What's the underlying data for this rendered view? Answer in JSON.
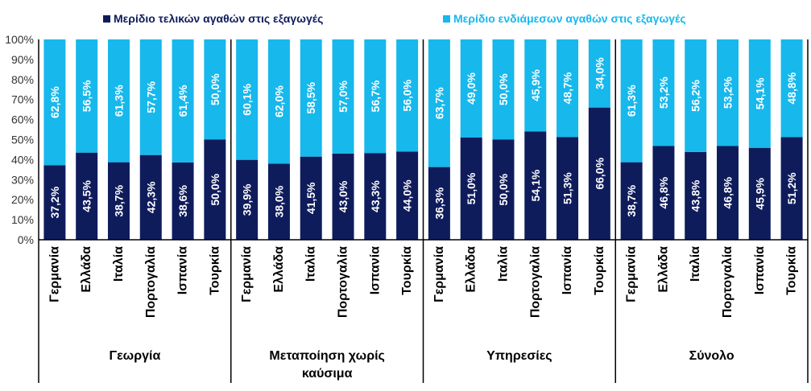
{
  "chart_data": {
    "type": "bar",
    "stacked": true,
    "y_ticks": [
      "0%",
      "10%",
      "20%",
      "30%",
      "40%",
      "50%",
      "60%",
      "70%",
      "80%",
      "90%",
      "100%"
    ],
    "ylim": [
      0,
      100
    ],
    "legend": [
      {
        "name": "Μερίδιο τελικών αγαθών στις εξαγωγές",
        "color": "#0f1c5c"
      },
      {
        "name": "Μερίδιο ενδιάμεσων αγαθών στις εξαγωγές",
        "color": "#17b8ec"
      }
    ],
    "countries": [
      "Γερμανία",
      "Ελλάδα",
      "Ιταλία",
      "Πορτογαλία",
      "Ισπανία",
      "Τουρκία"
    ],
    "groups": [
      {
        "label": "Γεωργία",
        "final": [
          37.2,
          43.5,
          38.7,
          42.3,
          38.6,
          50.0
        ],
        "final_labels": [
          "37,2%",
          "43,5%",
          "38,7%",
          "42,3%",
          "38,6%",
          "50,0%"
        ],
        "intermediate": [
          62.8,
          56.5,
          61.3,
          57.7,
          61.4,
          50.0
        ],
        "intermediate_labels": [
          "62,8%",
          "56,5%",
          "61,3%",
          "57,7%",
          "61,4%",
          "50,0%"
        ]
      },
      {
        "label": "Μεταποίηση χωρίς καύσιμα",
        "final": [
          39.9,
          38.0,
          41.5,
          43.0,
          43.3,
          44.0
        ],
        "final_labels": [
          "39,9%",
          "38,0%",
          "41,5%",
          "43,0%",
          "43,3%",
          "44,0%"
        ],
        "intermediate": [
          60.1,
          62.0,
          58.5,
          57.0,
          56.7,
          56.0
        ],
        "intermediate_labels": [
          "60,1%",
          "62,0%",
          "58,5%",
          "57,0%",
          "56,7%",
          "56,0%"
        ]
      },
      {
        "label": "Υπηρεσίες",
        "final": [
          36.3,
          51.0,
          50.0,
          54.1,
          51.3,
          66.0
        ],
        "final_labels": [
          "36,3%",
          "51,0%",
          "50,0%",
          "54,1%",
          "51,3%",
          "66,0%"
        ],
        "intermediate": [
          63.7,
          49.0,
          50.0,
          45.9,
          48.7,
          34.0
        ],
        "intermediate_labels": [
          "63,7%",
          "49,0%",
          "50,0%",
          "45,9%",
          "48,7%",
          "34,0%"
        ]
      },
      {
        "label": "Σύνολο",
        "final": [
          38.7,
          46.8,
          43.8,
          46.8,
          45.9,
          51.2
        ],
        "final_labels": [
          "38,7%",
          "46,8%",
          "43,8%",
          "46,8%",
          "45,9%",
          "51,2%"
        ],
        "intermediate": [
          61.3,
          53.2,
          56.2,
          53.2,
          54.1,
          48.8
        ],
        "intermediate_labels": [
          "61,3%",
          "53,2%",
          "56,2%",
          "53,2%",
          "54,1%",
          "48,8%"
        ]
      }
    ]
  }
}
